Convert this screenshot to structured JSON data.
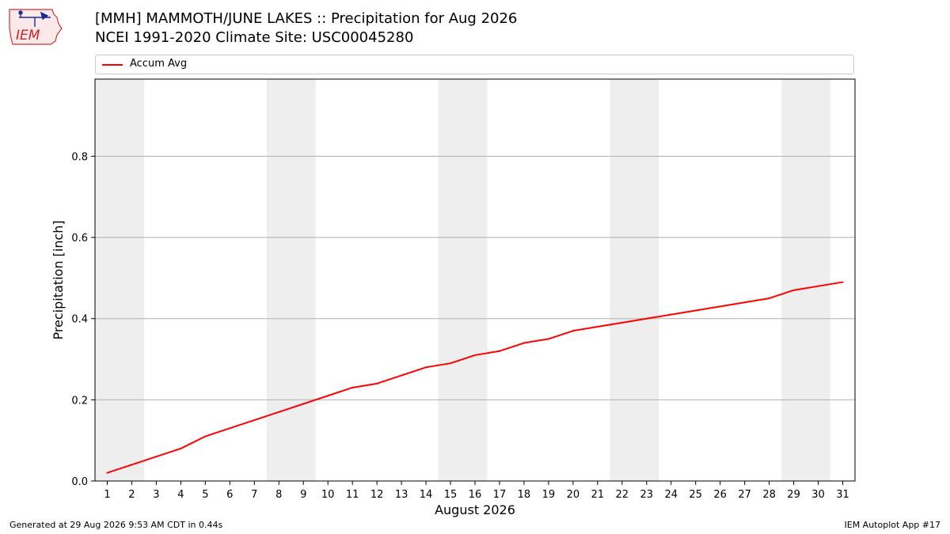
{
  "header": {
    "title_line1": "[MMH] MAMMOTH/JUNE LAKES :: Precipitation for Aug 2026",
    "title_line2": "NCEI 1991-2020 Climate Site: USC00045280"
  },
  "logo": {
    "text": "IEM",
    "icon": "iowa-state-outline-weather-station-logo"
  },
  "footer": {
    "generated": "Generated at 29 Aug 2026 9:53 AM CDT in 0.44s",
    "app": "IEM Autoplot App #17"
  },
  "chart_data": {
    "type": "line",
    "xlabel": "August 2026",
    "ylabel": "Precipitation [inch]",
    "x": [
      1,
      2,
      3,
      4,
      5,
      6,
      7,
      8,
      9,
      10,
      11,
      12,
      13,
      14,
      15,
      16,
      17,
      18,
      19,
      20,
      21,
      22,
      23,
      24,
      25,
      26,
      27,
      28,
      29,
      30,
      31
    ],
    "xlim": [
      0.5,
      31.5
    ],
    "ylim": [
      0,
      0.99
    ],
    "yticks": [
      0.0,
      0.2,
      0.4,
      0.6,
      0.8
    ],
    "ytick_labels": [
      "0.0",
      "0.2",
      "0.4",
      "0.6",
      "0.8"
    ],
    "grid": "horizontal",
    "legend_placement": "top",
    "series": [
      {
        "name": "Accum Avg",
        "color": "#ff0000",
        "values": [
          0.02,
          0.04,
          0.06,
          0.08,
          0.11,
          0.13,
          0.15,
          0.17,
          0.19,
          0.21,
          0.23,
          0.24,
          0.26,
          0.28,
          0.29,
          0.31,
          0.32,
          0.34,
          0.35,
          0.37,
          0.38,
          0.39,
          0.4,
          0.41,
          0.42,
          0.43,
          0.44,
          0.45,
          0.47,
          0.48,
          0.49
        ]
      }
    ],
    "shaded_days": [
      1,
      2,
      8,
      9,
      15,
      16,
      22,
      23,
      29,
      30
    ],
    "shade_color": "#eeeeee"
  }
}
